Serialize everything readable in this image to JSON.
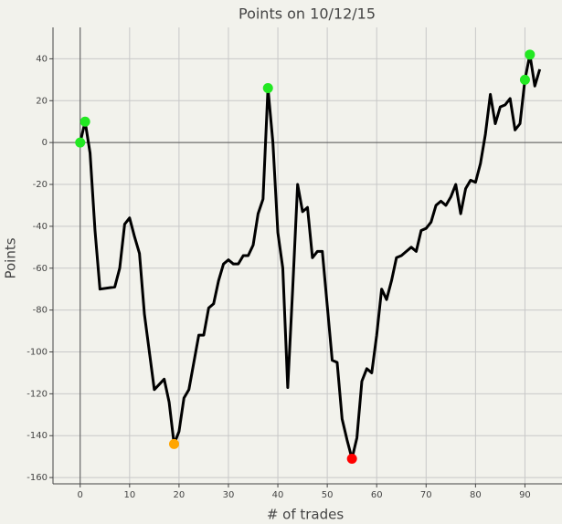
{
  "chart_data": {
    "type": "line",
    "title": "Points on 10/12/15",
    "xlabel": "# of trades",
    "ylabel": "Points",
    "xlim": [
      -5.5,
      97.5
    ],
    "ylim": [
      -163,
      55
    ],
    "xticks": [
      0,
      10,
      20,
      30,
      40,
      50,
      60,
      70,
      80,
      90
    ],
    "yticks": [
      -160,
      -140,
      -120,
      -100,
      -80,
      -60,
      -40,
      -20,
      0,
      20,
      40
    ],
    "grid": true,
    "line": {
      "color": "#000000",
      "x": [
        0,
        1,
        2,
        3,
        4,
        7,
        8,
        9,
        10,
        11,
        12,
        13,
        14,
        15,
        17,
        18,
        19,
        20,
        21,
        22,
        23,
        24,
        25,
        26,
        27,
        28,
        29,
        30,
        31,
        32,
        33,
        34,
        35,
        36,
        37,
        38,
        39,
        40,
        41,
        42,
        43,
        44,
        45,
        46,
        47,
        48,
        49,
        50,
        51,
        52,
        53,
        54,
        55,
        56,
        57,
        58,
        59,
        60,
        61,
        62,
        63,
        64,
        65,
        66,
        67,
        68,
        69,
        70,
        71,
        72,
        73,
        74,
        75,
        76,
        77,
        78,
        79,
        80,
        81,
        82,
        83,
        84,
        85,
        86,
        87,
        88,
        89,
        90,
        91,
        92,
        93
      ],
      "values": [
        0,
        10,
        -5,
        -42,
        -70,
        -69,
        -60,
        -39,
        -36,
        -45,
        -53,
        -82,
        -100,
        -118,
        -113,
        -124,
        -144,
        -138,
        -122,
        -118,
        -105,
        -92,
        -92,
        -79,
        -77,
        -66,
        -58,
        -56,
        -58,
        -58,
        -54,
        -54,
        -49,
        -34,
        -27,
        26,
        0,
        -43,
        -60,
        -117,
        -70,
        -20,
        -33,
        -31,
        -55,
        -52,
        -52,
        -78,
        -104,
        -105,
        -132,
        -142,
        -151,
        -141,
        -114,
        -108,
        -110,
        -92,
        -70,
        -75,
        -66,
        -55,
        -54,
        -52,
        -50,
        -52,
        -42,
        -41,
        -38,
        -30,
        -28,
        -30,
        -26,
        -20,
        -34,
        -22,
        -18,
        -19,
        -10,
        4,
        23,
        9,
        17,
        18,
        21,
        6,
        9,
        30,
        42,
        27,
        35
      ]
    },
    "points": [
      {
        "color": "#22e822",
        "x": [
          0,
          1,
          38,
          90,
          91
        ],
        "values": [
          0,
          10,
          26,
          30,
          42
        ]
      },
      {
        "color": "#ffa500",
        "x": [
          19
        ],
        "values": [
          -144
        ]
      },
      {
        "color": "#ff0000",
        "x": [
          55
        ],
        "values": [
          -151
        ]
      }
    ]
  }
}
